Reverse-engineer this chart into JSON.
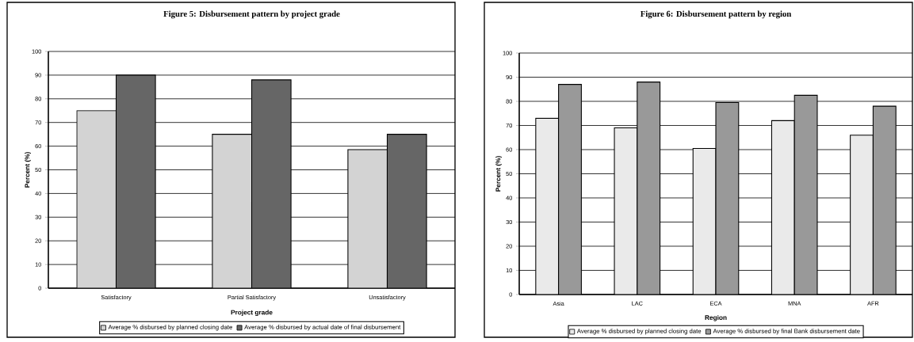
{
  "chart_data": [
    {
      "type": "bar",
      "title": "Figure 5:  Disbursement pattern by project grade",
      "xlabel": "Project grade",
      "ylabel": "Percent (%)",
      "categories": [
        "Satisfactory",
        "Partial  Satisfactory",
        "Unsatisfactory"
      ],
      "series": [
        {
          "name": "Average % disbursed by planned closing date",
          "color": "#d3d3d3",
          "values": [
            75,
            65,
            58.5
          ]
        },
        {
          "name": "Average % disbursed by actual date of final disbursement",
          "color": "#666666",
          "values": [
            90,
            88,
            65
          ]
        }
      ],
      "ylim": [
        0,
        100
      ],
      "yticks": [
        0,
        10,
        20,
        30,
        40,
        50,
        60,
        70,
        80,
        90,
        100
      ],
      "grid": "y",
      "legend": "bottom"
    },
    {
      "type": "bar",
      "title": "Figure 6:  Disbursement pattern by region",
      "xlabel": "Region",
      "ylabel": "Percent (%)",
      "categories": [
        "Asia",
        "LAC",
        "ECA",
        "MNA",
        "AFR"
      ],
      "series": [
        {
          "name": "Average % disbursed by planned closing date",
          "color": "#eaeaea",
          "values": [
            73,
            69,
            60.5,
            72,
            66
          ]
        },
        {
          "name": "Average % disbursed by final Bank disbursement date",
          "color": "#999999",
          "values": [
            87,
            88,
            79.5,
            82.5,
            78
          ]
        }
      ],
      "ylim": [
        0,
        100
      ],
      "yticks": [
        0,
        10,
        20,
        30,
        40,
        50,
        60,
        70,
        80,
        90,
        100
      ],
      "grid": "y",
      "legend": "bottom"
    }
  ]
}
